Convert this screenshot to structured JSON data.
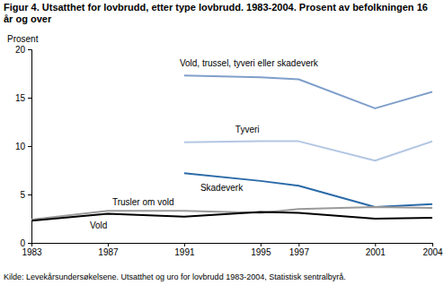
{
  "chart_data": {
    "type": "line",
    "title": "Figur 4. Utsatthet for lovbrudd, etter type lovbrudd. 1983-2004. Prosent av befolkningen 16 år og over",
    "y_label": "Prosent",
    "source": "Kilde: Levekårsundersøkelsene. Utsatthet og uro for lovbrudd 1983-2004, Statistisk sentralbyrå.",
    "x": [
      1983,
      1987,
      1991,
      1995,
      1997,
      2001,
      2004
    ],
    "series": [
      {
        "name": "Vold, trussel, tyveri eller skadeverk",
        "color": "#7f9fcb",
        "values": [
          null,
          null,
          17.3,
          17.1,
          16.9,
          13.9,
          15.6
        ]
      },
      {
        "name": "Tyveri",
        "color": "#b3c6e3",
        "values": [
          null,
          null,
          10.4,
          10.5,
          10.5,
          8.5,
          10.5
        ]
      },
      {
        "name": "Skadeverk",
        "color": "#2a6aa8",
        "values": [
          null,
          null,
          7.2,
          6.4,
          5.9,
          3.7,
          4.0
        ]
      },
      {
        "name": "Trusler om vold",
        "color": "#9a9a9a",
        "values": [
          2.4,
          3.3,
          3.3,
          3.1,
          3.5,
          3.7,
          3.6
        ]
      },
      {
        "name": "Vold",
        "color": "#000000",
        "values": [
          2.3,
          3.0,
          2.7,
          3.2,
          3.1,
          2.5,
          2.6
        ]
      }
    ],
    "xlim": [
      1983,
      2004
    ],
    "xticks": [
      1983,
      1987,
      1991,
      1995,
      1997,
      2001,
      2004
    ],
    "ylim": [
      0,
      20
    ],
    "yticks": [
      0,
      5,
      10,
      15,
      20
    ],
    "grid": false
  }
}
